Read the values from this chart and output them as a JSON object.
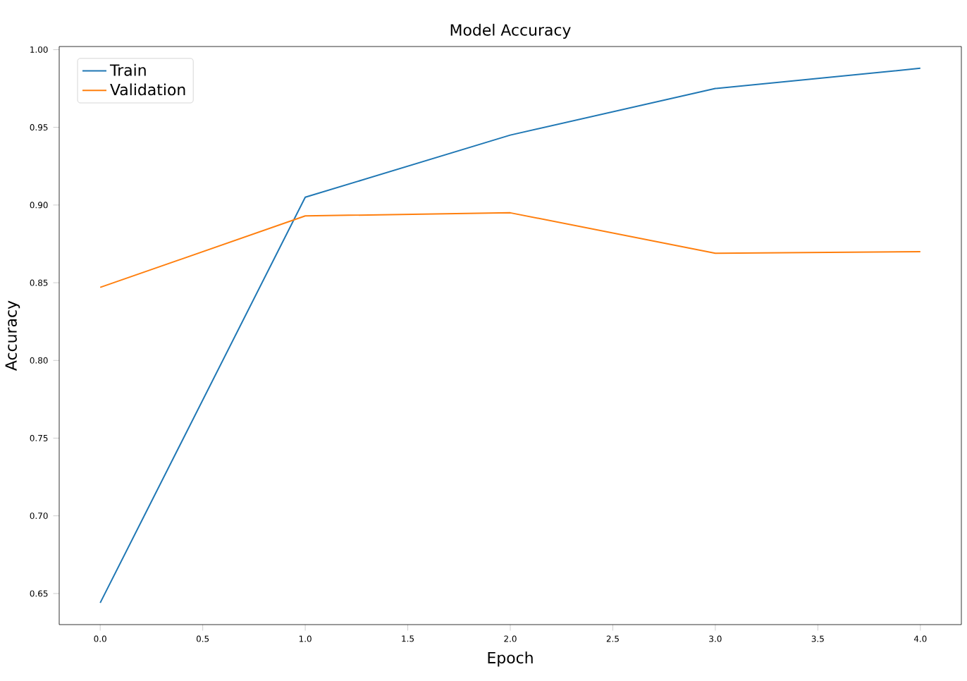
{
  "chart_data": {
    "type": "line",
    "title": "Model Accuracy",
    "xlabel": "Epoch",
    "ylabel": "Accuracy",
    "x": [
      0,
      1,
      2,
      3,
      4
    ],
    "series": [
      {
        "name": "Train",
        "color": "#1f77b4",
        "values": [
          0.644,
          0.905,
          0.945,
          0.975,
          0.988
        ]
      },
      {
        "name": "Validation",
        "color": "#ff7f0e",
        "values": [
          0.847,
          0.893,
          0.895,
          0.869,
          0.87
        ]
      }
    ],
    "xlim": [
      -0.2,
      4.2
    ],
    "ylim": [
      0.63,
      1.002
    ],
    "xticks": [
      {
        "value": 0,
        "label": "0.0"
      },
      {
        "value": 0.5,
        "label": "0.5"
      },
      {
        "value": 1,
        "label": "1.0"
      },
      {
        "value": 1.5,
        "label": "1.5"
      },
      {
        "value": 2,
        "label": "2.0"
      },
      {
        "value": 2.5,
        "label": "2.5"
      },
      {
        "value": 3,
        "label": "3.0"
      },
      {
        "value": 3.5,
        "label": "3.5"
      },
      {
        "value": 4,
        "label": "4.0"
      }
    ],
    "yticks": [
      {
        "value": 0.65,
        "label": "0.65"
      },
      {
        "value": 0.7,
        "label": "0.70"
      },
      {
        "value": 0.75,
        "label": "0.75"
      },
      {
        "value": 0.8,
        "label": "0.80"
      },
      {
        "value": 0.85,
        "label": "0.85"
      },
      {
        "value": 0.9,
        "label": "0.90"
      },
      {
        "value": 0.95,
        "label": "0.95"
      },
      {
        "value": 1.0,
        "label": "1.00"
      }
    ],
    "grid": false,
    "legend": "top left",
    "marker": "none",
    "line_style": "solid"
  }
}
